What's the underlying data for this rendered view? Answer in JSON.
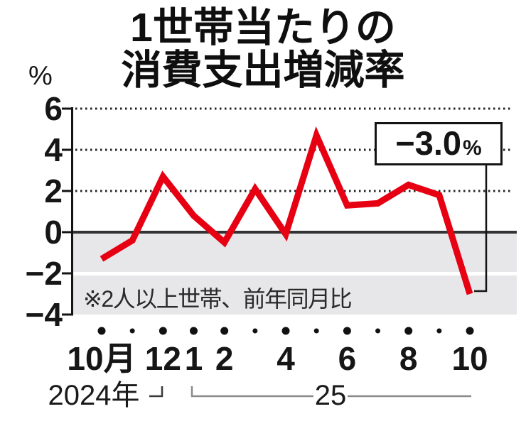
{
  "title": {
    "line1": "1世帯当たりの",
    "line2": "消費支出増減率"
  },
  "y_axis": {
    "unit_label": "%",
    "tick_labels": [
      "6",
      "4",
      "2",
      "0",
      "−2",
      "−4"
    ],
    "tick_values": [
      6,
      4,
      2,
      0,
      -2,
      -4
    ]
  },
  "x_axis": {
    "year_left": "2024年",
    "year_right": "25",
    "month_labels": [
      "10月",
      "",
      "12",
      "1",
      "2",
      "",
      "4",
      "",
      "6",
      "",
      "8",
      "",
      "10"
    ]
  },
  "note": "※2人以上世帯、前年同月比",
  "callout": {
    "value": "−3.0",
    "unit": "%"
  },
  "colors": {
    "line": "#e60012",
    "grid": "#222222",
    "zero_line": "#333333",
    "axis": "#141414",
    "shade": "#e7e7e9",
    "bracket": "#8a8a8a",
    "leader": "#141414"
  },
  "chart_data": {
    "type": "line",
    "title": "1世帯当たりの消費支出増減率",
    "ylabel": "%",
    "ylim": [
      -4,
      6
    ],
    "y_ticks": [
      6,
      4,
      2,
      0,
      -2,
      -4
    ],
    "x": [
      "2024-10",
      "2024-11",
      "2024-12",
      "2025-01",
      "2025-02",
      "2025-03",
      "2025-04",
      "2025-05",
      "2025-06",
      "2025-07",
      "2025-08",
      "2025-09",
      "2025-10"
    ],
    "x_tick_labels": [
      "10月",
      "",
      "12",
      "1",
      "2",
      "",
      "4",
      "",
      "6",
      "",
      "8",
      "",
      "10"
    ],
    "values": [
      -1.3,
      -0.4,
      2.7,
      0.8,
      -0.5,
      2.1,
      -0.1,
      4.7,
      1.3,
      1.4,
      2.3,
      1.8,
      -3.0
    ],
    "series_name": "消費支出増減率（前年同月比）",
    "annotation": {
      "text": "−3.0%",
      "x": "2025-10",
      "y": -3.0
    },
    "note": "※2人以上世帯、前年同月比",
    "grid": "dotted horizontal lines at 2, 4, 6; solid line at 0; gray shading from 0 to -4 with divider at -2",
    "legend": "none"
  }
}
